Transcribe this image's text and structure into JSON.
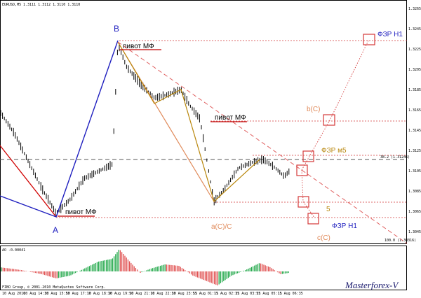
{
  "header": {
    "symbol": "EURUSD,M5",
    "ohlc": "1.3111 1.3112 1.3110 1.3110"
  },
  "indicator": {
    "title": "AO -0.00041"
  },
  "copyright": "FIBO Group, © 2001-2010 MetaQuotes Software Corp.",
  "watermark": "Masterforex-V",
  "fib_label": "38.2 (1.31246)",
  "fib_label_low": "100.0 (1.30316)",
  "annotations": {
    "A": "A",
    "B": "B",
    "pivot_1": "пивот МФ",
    "pivot_2": "пивот МФ",
    "pivot_3": "пивот МФ",
    "fzr_h1_top": "ФЗР Н1",
    "fzr_m5": "ФЗР м5",
    "fzr_h1_bottom": "ФЗР Н1",
    "bC": "b(C)",
    "aCC": "a(C)/C",
    "cC": "c(C)",
    "five": "5"
  },
  "colors": {
    "A": "#1f1fbf",
    "B": "#1f1fbf",
    "pivot": "#000000",
    "fzr_h1_top": "#1f1fbf",
    "fzr_m5": "#b8860b",
    "fzr_h1_bottom": "#1f1fbf",
    "bC": "#e08a5a",
    "aCC": "#e08a5a",
    "cC": "#e08a5a",
    "five": "#b8860b"
  },
  "chart_data": {
    "type": "line",
    "price_axis_ticks": [
      "1.3265",
      "1.3245",
      "1.3225",
      "1.3205",
      "1.3185",
      "1.3165",
      "1.3145",
      "1.3125",
      "1.3105",
      "1.3085",
      "1.3065",
      "1.3045"
    ],
    "time_axis_ticks": [
      "10 Aug 2010",
      "10 Aug 14:30",
      "10 Aug 15:50",
      "10 Aug 17:10",
      "10 Aug 18:30",
      "10 Aug 19:50",
      "10 Aug 21:10",
      "10 Aug 22:30",
      "10 Aug 23:55",
      "11 Aug 01:15",
      "11 Aug 02:35",
      "11 Aug 03:55",
      "11 Aug 05:15",
      "11 Aug 06:35"
    ],
    "ylim": [
      1.304,
      1.327
    ]
  }
}
